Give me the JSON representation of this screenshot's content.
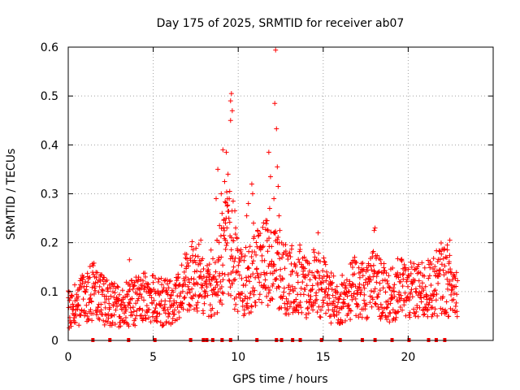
{
  "chart_data": {
    "type": "scatter",
    "title": "Day 175 of 2025, SRMTID for receiver ab07",
    "xlabel": "GPS time / hours",
    "ylabel": "SRMTID / TECUs",
    "xlim": [
      0,
      25
    ],
    "ylim": [
      0,
      0.6
    ],
    "xticks": [
      "0",
      "5",
      "10",
      "15",
      "20"
    ],
    "yticks": [
      "0",
      "0.1",
      "0.2",
      "0.3",
      "0.4",
      "0.5",
      "0.6"
    ],
    "grid": true,
    "marker": "+",
    "color": "#ff0000",
    "x_range_hours": [
      0,
      22.9
    ],
    "baseline_profile": [
      [
        0.0,
        0.065
      ],
      [
        0.5,
        0.075
      ],
      [
        1.0,
        0.09
      ],
      [
        1.5,
        0.1
      ],
      [
        2.0,
        0.085
      ],
      [
        2.5,
        0.075
      ],
      [
        3.0,
        0.07
      ],
      [
        3.5,
        0.075
      ],
      [
        4.0,
        0.08
      ],
      [
        4.5,
        0.09
      ],
      [
        5.0,
        0.085
      ],
      [
        5.5,
        0.08
      ],
      [
        6.0,
        0.075
      ],
      [
        6.5,
        0.09
      ],
      [
        7.0,
        0.12
      ],
      [
        7.5,
        0.14
      ],
      [
        8.0,
        0.1
      ],
      [
        8.5,
        0.11
      ],
      [
        9.0,
        0.15
      ],
      [
        9.3,
        0.2
      ],
      [
        9.5,
        0.2
      ],
      [
        9.8,
        0.14
      ],
      [
        10.3,
        0.12
      ],
      [
        10.8,
        0.13
      ],
      [
        11.2,
        0.15
      ],
      [
        11.6,
        0.17
      ],
      [
        12.0,
        0.15
      ],
      [
        12.5,
        0.13
      ],
      [
        13.0,
        0.12
      ],
      [
        13.5,
        0.13
      ],
      [
        14.0,
        0.11
      ],
      [
        14.5,
        0.12
      ],
      [
        15.0,
        0.11
      ],
      [
        15.5,
        0.085
      ],
      [
        16.0,
        0.08
      ],
      [
        16.5,
        0.1
      ],
      [
        17.0,
        0.11
      ],
      [
        17.5,
        0.1
      ],
      [
        18.0,
        0.12
      ],
      [
        18.5,
        0.1
      ],
      [
        19.0,
        0.09
      ],
      [
        19.5,
        0.11
      ],
      [
        20.0,
        0.1
      ],
      [
        20.5,
        0.1
      ],
      [
        21.0,
        0.1
      ],
      [
        21.5,
        0.11
      ],
      [
        22.0,
        0.13
      ],
      [
        22.5,
        0.11
      ],
      [
        22.9,
        0.1
      ]
    ],
    "spike_points": [
      [
        12.2,
        0.594
      ],
      [
        9.6,
        0.505
      ],
      [
        9.55,
        0.49
      ],
      [
        12.15,
        0.485
      ],
      [
        9.65,
        0.47
      ],
      [
        9.55,
        0.45
      ],
      [
        12.25,
        0.433
      ],
      [
        9.1,
        0.39
      ],
      [
        9.3,
        0.385
      ],
      [
        11.8,
        0.385
      ],
      [
        12.3,
        0.355
      ],
      [
        8.8,
        0.35
      ],
      [
        9.4,
        0.34
      ],
      [
        11.9,
        0.335
      ],
      [
        9.2,
        0.325
      ],
      [
        10.8,
        0.32
      ],
      [
        12.35,
        0.315
      ],
      [
        9.5,
        0.305
      ],
      [
        10.85,
        0.3
      ],
      [
        9.0,
        0.3
      ],
      [
        8.7,
        0.29
      ],
      [
        12.1,
        0.29
      ],
      [
        9.7,
        0.285
      ],
      [
        10.6,
        0.28
      ],
      [
        9.35,
        0.275
      ],
      [
        11.85,
        0.27
      ],
      [
        9.8,
        0.265
      ],
      [
        9.05,
        0.26
      ],
      [
        10.5,
        0.255
      ],
      [
        12.4,
        0.255
      ],
      [
        9.45,
        0.25
      ],
      [
        11.7,
        0.245
      ],
      [
        9.25,
        0.24
      ],
      [
        10.9,
        0.24
      ],
      [
        8.9,
        0.235
      ],
      [
        9.85,
        0.23
      ],
      [
        11.75,
        0.225
      ],
      [
        12.45,
        0.225
      ],
      [
        14.7,
        0.22
      ],
      [
        18.0,
        0.225
      ],
      [
        18.05,
        0.23
      ],
      [
        22.45,
        0.205
      ],
      [
        22.3,
        0.195
      ],
      [
        22.1,
        0.185
      ],
      [
        9.15,
        0.215
      ],
      [
        9.6,
        0.21
      ],
      [
        8.75,
        0.205
      ],
      [
        3.6,
        0.165
      ],
      [
        8.4,
        0.185
      ],
      [
        7.8,
        0.205
      ]
    ],
    "data_gaps_hours": [
      1.45,
      2.45,
      3.55,
      5.1,
      7.2,
      7.95,
      8.15,
      8.5,
      9.05,
      9.55,
      11.1,
      12.25,
      12.55,
      13.2,
      13.65,
      14.9,
      16.0,
      17.3,
      18.05,
      19.05,
      20.05,
      21.2,
      21.65,
      22.15
    ]
  }
}
